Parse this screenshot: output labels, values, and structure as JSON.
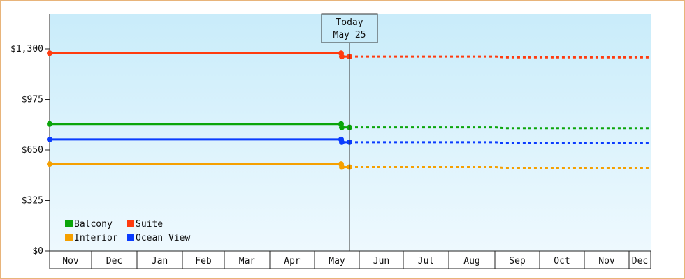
{
  "chart_data": {
    "type": "line",
    "today": {
      "line1": "Today",
      "line2": "May 25"
    },
    "y_ticks": [
      {
        "value": 0,
        "label": "$0"
      },
      {
        "value": 325,
        "label": "$325"
      },
      {
        "value": 650,
        "label": "$650"
      },
      {
        "value": 975,
        "label": "$975"
      },
      {
        "value": 1300,
        "label": "$1,300"
      }
    ],
    "ylim": [
      0,
      1300
    ],
    "months": [
      "Nov",
      "Dec",
      "Jan",
      "Feb",
      "Mar",
      "Apr",
      "May",
      "Jun",
      "Jul",
      "Aug",
      "Sep",
      "Oct",
      "Nov",
      "Dec"
    ],
    "series": [
      {
        "name": "Suite",
        "color": "#ff3b0f",
        "actual": 1272,
        "forecast_start": 1250,
        "forecast_end": 1245
      },
      {
        "name": "Balcony",
        "color": "#0aa50a",
        "actual": 817,
        "forecast_start": 795,
        "forecast_end": 790
      },
      {
        "name": "Ocean View",
        "color": "#0a3cff",
        "actual": 718,
        "forecast_start": 700,
        "forecast_end": 693
      },
      {
        "name": "Interior",
        "color": "#f5a000",
        "actual": 560,
        "forecast_start": 540,
        "forecast_end": 535
      }
    ],
    "legend": {
      "placement": "bottom-left",
      "rows": [
        [
          "Balcony",
          "Suite"
        ],
        [
          "Interior",
          "Ocean View"
        ]
      ]
    },
    "grid": false
  }
}
